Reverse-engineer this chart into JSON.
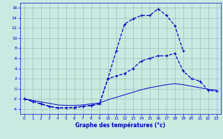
{
  "hours": [
    0,
    1,
    2,
    3,
    4,
    5,
    6,
    7,
    8,
    9,
    10,
    11,
    12,
    13,
    14,
    15,
    16,
    17,
    18,
    19,
    20,
    21,
    22,
    23
  ],
  "line1": [
    -2.0,
    -2.5,
    -3.0,
    -3.5,
    -3.8,
    -3.8,
    -3.7,
    -3.5,
    -3.3,
    -3.0,
    2.0,
    7.5,
    12.8,
    13.8,
    14.5,
    14.5,
    15.8,
    14.5,
    12.5,
    7.5,
    null,
    null,
    null,
    null
  ],
  "line2": [
    -2.0,
    -2.5,
    -3.0,
    -3.5,
    -3.8,
    -3.8,
    -3.7,
    -3.5,
    -3.3,
    -3.0,
    2.0,
    2.5,
    3.0,
    4.0,
    5.5,
    6.0,
    6.5,
    6.5,
    7.0,
    3.5,
    2.0,
    1.5,
    -0.3,
    -0.5
  ],
  "line3": [
    -2.0,
    -2.3,
    -2.6,
    -2.9,
    -3.2,
    -3.3,
    -3.3,
    -3.2,
    -3.0,
    -2.8,
    -2.2,
    -1.7,
    -1.2,
    -0.7,
    -0.2,
    0.2,
    0.5,
    0.8,
    1.0,
    0.8,
    0.5,
    0.2,
    -0.1,
    -0.3
  ],
  "line_color": "#0000CC",
  "bg_color": "#C8EAE0",
  "grid_color": "#9BBFBA",
  "xlabel": "Graphe des températures (°c)",
  "xlim": [
    -0.5,
    23.5
  ],
  "ylim": [
    -5,
    17
  ],
  "yticks": [
    -4,
    -2,
    0,
    2,
    4,
    6,
    8,
    10,
    12,
    14,
    16
  ],
  "xticks": [
    0,
    1,
    2,
    3,
    4,
    5,
    6,
    7,
    8,
    9,
    10,
    11,
    12,
    13,
    14,
    15,
    16,
    17,
    18,
    19,
    20,
    21,
    22,
    23
  ]
}
